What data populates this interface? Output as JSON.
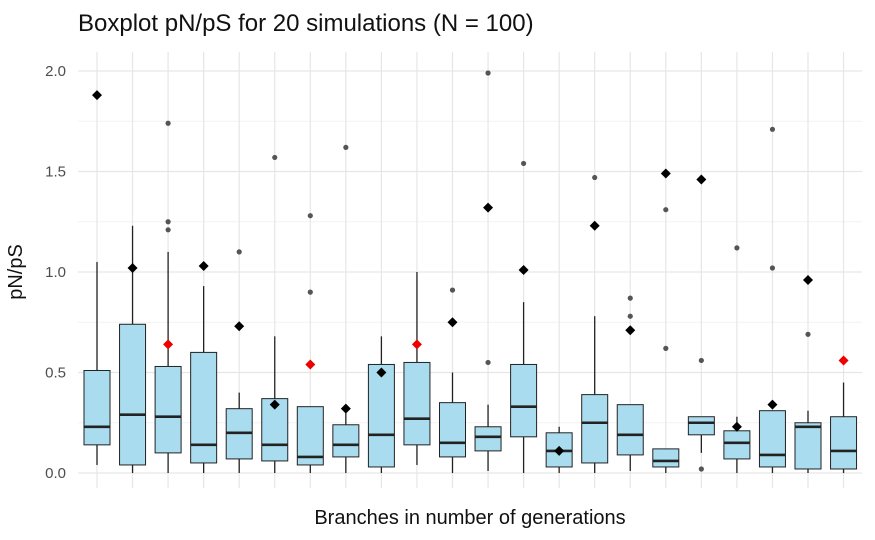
{
  "chart_data": {
    "type": "boxplot",
    "title": "Boxplot pN/pS for 20 simulations (N = 100)",
    "xlabel": "Branches in number of generations",
    "ylabel": "pN/pS",
    "ylim": [
      0,
      2.0
    ],
    "yticks": [
      "0.0",
      "0.5",
      "1.0",
      "1.5",
      "2.0"
    ],
    "grid": true,
    "legend": "none",
    "colors": {
      "box_fill": "#a9dcee",
      "box_stroke": "#222222",
      "median": "#222222",
      "outlier": "#555555",
      "marker_default": "#000000",
      "marker_highlight": "#ee0000",
      "grid_major": "#e6e6e6",
      "grid_minor": "#f2f2f2"
    },
    "boxes": [
      {
        "q1": 0.14,
        "median": 0.23,
        "q3": 0.51,
        "whisker_low": 0.04,
        "whisker_high": 1.05,
        "outliers": [],
        "marker": 1.88,
        "marker_color": "black"
      },
      {
        "q1": 0.04,
        "median": 0.29,
        "q3": 0.74,
        "whisker_low": 0.0,
        "whisker_high": 1.23,
        "outliers": [],
        "marker": 1.02,
        "marker_color": "black"
      },
      {
        "q1": 0.1,
        "median": 0.28,
        "q3": 0.53,
        "whisker_low": 0.0,
        "whisker_high": 1.1,
        "outliers": [
          1.21,
          1.25,
          1.74
        ],
        "marker": 0.64,
        "marker_color": "red"
      },
      {
        "q1": 0.05,
        "median": 0.14,
        "q3": 0.6,
        "whisker_low": 0.0,
        "whisker_high": 0.93,
        "outliers": [],
        "marker": 1.03,
        "marker_color": "black"
      },
      {
        "q1": 0.07,
        "median": 0.2,
        "q3": 0.32,
        "whisker_low": 0.0,
        "whisker_high": 0.4,
        "outliers": [
          1.1
        ],
        "marker": 0.73,
        "marker_color": "black"
      },
      {
        "q1": 0.06,
        "median": 0.14,
        "q3": 0.37,
        "whisker_low": 0.0,
        "whisker_high": 0.68,
        "outliers": [
          1.57
        ],
        "marker": 0.34,
        "marker_color": "black"
      },
      {
        "q1": 0.04,
        "median": 0.08,
        "q3": 0.33,
        "whisker_low": 0.0,
        "whisker_high": 0.33,
        "outliers": [
          0.9,
          1.28
        ],
        "marker": 0.54,
        "marker_color": "red"
      },
      {
        "q1": 0.08,
        "median": 0.14,
        "q3": 0.24,
        "whisker_low": 0.0,
        "whisker_high": 0.33,
        "outliers": [
          1.62
        ],
        "marker": 0.32,
        "marker_color": "black"
      },
      {
        "q1": 0.03,
        "median": 0.19,
        "q3": 0.54,
        "whisker_low": 0.0,
        "whisker_high": 0.68,
        "outliers": [],
        "marker": 0.5,
        "marker_color": "black"
      },
      {
        "q1": 0.14,
        "median": 0.27,
        "q3": 0.55,
        "whisker_low": 0.04,
        "whisker_high": 1.0,
        "outliers": [],
        "marker": 0.64,
        "marker_color": "red"
      },
      {
        "q1": 0.08,
        "median": 0.15,
        "q3": 0.35,
        "whisker_low": 0.0,
        "whisker_high": 0.5,
        "outliers": [
          0.91
        ],
        "marker": 0.75,
        "marker_color": "black"
      },
      {
        "q1": 0.11,
        "median": 0.18,
        "q3": 0.23,
        "whisker_low": 0.01,
        "whisker_high": 0.34,
        "outliers": [
          0.55,
          1.99
        ],
        "marker": 1.32,
        "marker_color": "black"
      },
      {
        "q1": 0.18,
        "median": 0.33,
        "q3": 0.54,
        "whisker_low": 0.0,
        "whisker_high": 0.85,
        "outliers": [
          1.54
        ],
        "marker": 1.01,
        "marker_color": "black"
      },
      {
        "q1": 0.03,
        "median": 0.11,
        "q3": 0.2,
        "whisker_low": 0.0,
        "whisker_high": 0.23,
        "outliers": [],
        "marker": 0.11,
        "marker_color": "black"
      },
      {
        "q1": 0.05,
        "median": 0.25,
        "q3": 0.39,
        "whisker_low": 0.0,
        "whisker_high": 0.78,
        "outliers": [
          1.47
        ],
        "marker": 1.23,
        "marker_color": "black"
      },
      {
        "q1": 0.09,
        "median": 0.19,
        "q3": 0.34,
        "whisker_low": 0.01,
        "whisker_high": 0.34,
        "outliers": [
          0.78,
          0.87
        ],
        "marker": 0.71,
        "marker_color": "black"
      },
      {
        "q1": 0.03,
        "median": 0.06,
        "q3": 0.12,
        "whisker_low": 0.0,
        "whisker_high": 0.12,
        "outliers": [
          0.62,
          1.31
        ],
        "marker": 1.49,
        "marker_color": "black"
      },
      {
        "q1": 0.19,
        "median": 0.25,
        "q3": 0.28,
        "whisker_low": 0.1,
        "whisker_high": 0.28,
        "outliers": [
          0.02,
          0.56
        ],
        "marker": 1.46,
        "marker_color": "black"
      },
      {
        "q1": 0.07,
        "median": 0.15,
        "q3": 0.21,
        "whisker_low": 0.0,
        "whisker_high": 0.28,
        "outliers": [
          1.12
        ],
        "marker": 0.23,
        "marker_color": "black"
      },
      {
        "q1": 0.03,
        "median": 0.09,
        "q3": 0.31,
        "whisker_low": 0.0,
        "whisker_high": 0.31,
        "outliers": [
          1.02,
          1.71
        ],
        "marker": 0.34,
        "marker_color": "black"
      },
      {
        "q1": 0.02,
        "median": 0.23,
        "q3": 0.25,
        "whisker_low": 0.0,
        "whisker_high": 0.31,
        "outliers": [
          0.69
        ],
        "marker": 0.96,
        "marker_color": "black"
      },
      {
        "q1": 0.02,
        "median": 0.11,
        "q3": 0.28,
        "whisker_low": 0.0,
        "whisker_high": 0.45,
        "outliers": [],
        "marker": 0.56,
        "marker_color": "red"
      }
    ]
  }
}
